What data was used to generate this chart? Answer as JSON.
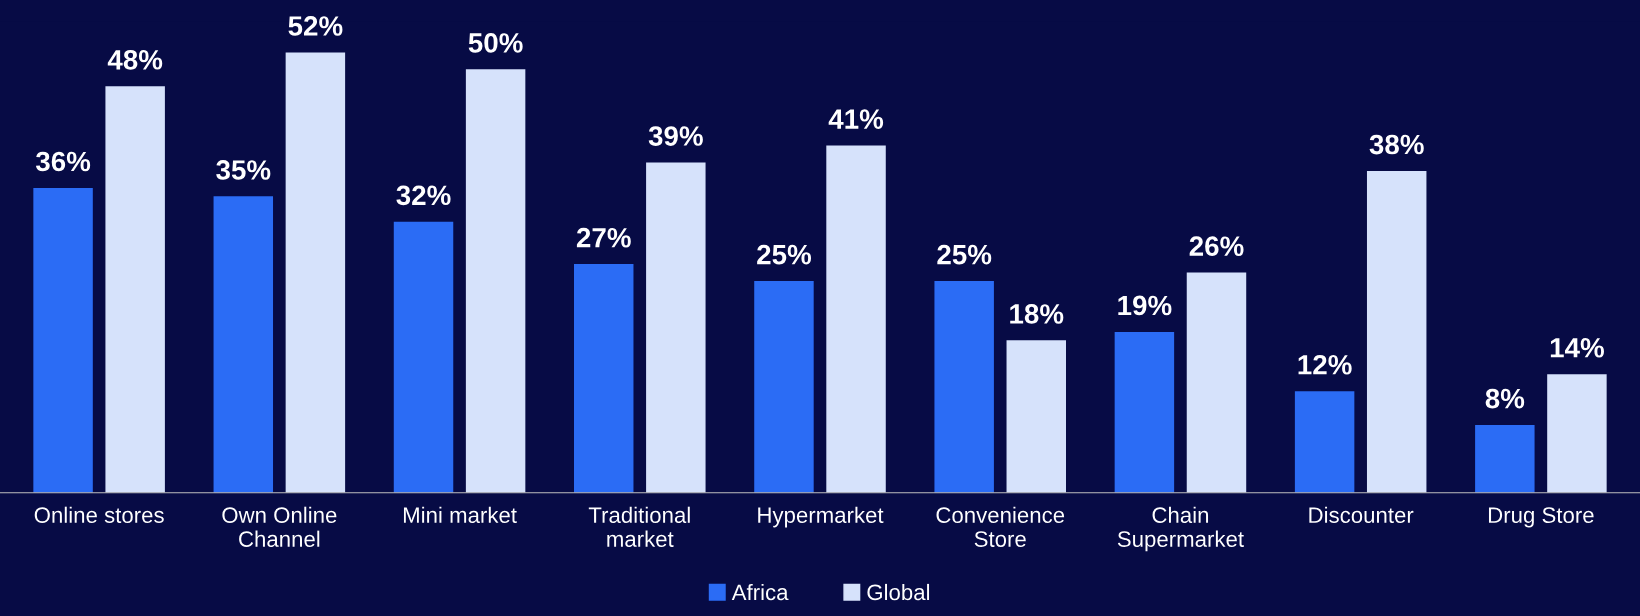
{
  "chart_data": {
    "type": "bar",
    "categories": [
      "Online stores",
      "Own Online\nChannel",
      "Mini market",
      "Traditional\nmarket",
      "Hypermarket",
      "Convenience\nStore",
      "Chain\nSupermarket",
      "Discounter",
      "Drug Store"
    ],
    "series": [
      {
        "name": "Africa",
        "color": "#2b6cf5",
        "values": [
          36,
          35,
          32,
          27,
          25,
          25,
          19,
          12,
          8
        ],
        "value_labels": [
          "36%",
          "35%",
          "32%",
          "27%",
          "25%",
          "25%",
          "19%",
          "12%",
          "8%"
        ]
      },
      {
        "name": "Global",
        "color": "#d6e2fb",
        "values": [
          48,
          52,
          50,
          39,
          41,
          18,
          26,
          38,
          14
        ],
        "value_labels": [
          "48%",
          "52%",
          "50%",
          "39%",
          "41%",
          "18%",
          "26%",
          "38%",
          "14%"
        ]
      }
    ],
    "legend": "bottom",
    "grid": false
  }
}
